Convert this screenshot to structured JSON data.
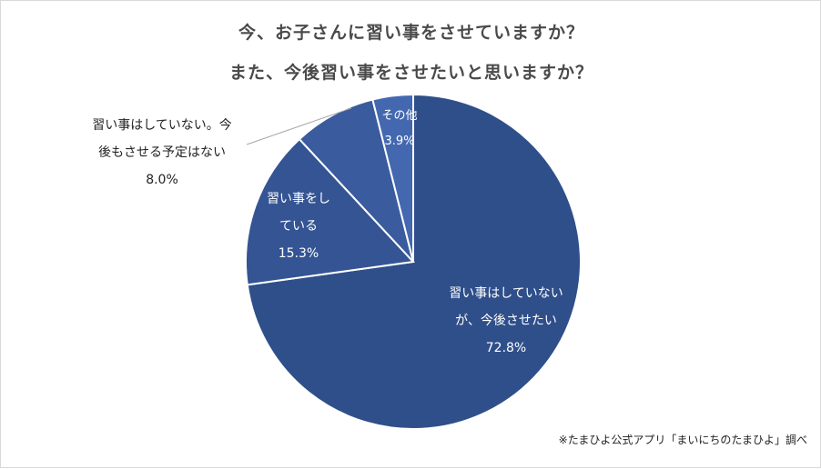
{
  "chart_data": {
    "type": "pie",
    "title": "今、お子さんに習い事をさせていますか？",
    "subtitle": "また、今後習い事をさせたいと思いますか？",
    "slices": [
      {
        "label_lines": [
          "習い事はしていない",
          "が、今後させたい"
        ],
        "value": 72.8,
        "value_label": "72.8%",
        "color": "#2f4f8a"
      },
      {
        "label_lines": [
          "習い事をし",
          "ている"
        ],
        "value": 15.3,
        "value_label": "15.3%",
        "color": "#345494"
      },
      {
        "label_lines": [
          "習い事はしていない。今",
          "後もさせる予定はない"
        ],
        "value": 8.0,
        "value_label": "8.0%",
        "color": "#3a5b9e"
      },
      {
        "label_lines": [
          "その他"
        ],
        "value": 3.9,
        "value_label": "3.9%",
        "color": "#4468b0"
      }
    ]
  },
  "footer": {
    "source": "※たまひよ公式アプリ「まいにちのたまひよ」調べ"
  }
}
